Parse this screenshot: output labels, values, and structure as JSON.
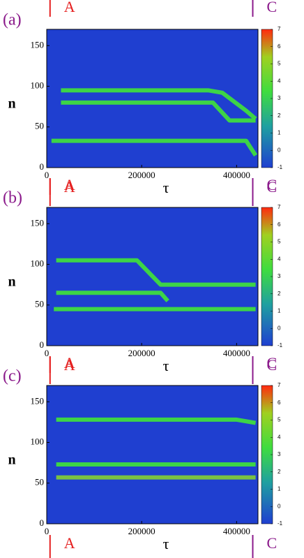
{
  "chart_data": [
    {
      "type": "line",
      "label": "(a)",
      "xlabel": "τ",
      "ylabel": "n",
      "xlim": [
        0,
        445000
      ],
      "ylim": [
        0,
        170
      ],
      "xticks": [
        0,
        200000,
        400000
      ],
      "yticks": [
        0,
        50,
        100,
        150
      ],
      "background": "#1f3fd0",
      "colorbar": {
        "lim": [
          -1,
          7
        ],
        "ticks": [
          -1,
          0,
          1,
          2,
          3,
          4,
          5,
          6,
          7
        ]
      },
      "markers": [
        {
          "label": "A",
          "x": 7000,
          "color": "#e52020"
        },
        {
          "label": "C",
          "x": 434000,
          "color": "#8b1a8b"
        }
      ],
      "series": [
        {
          "color": "#3fdc3f",
          "x": [
            30000,
            340000,
            370000,
            420000,
            440000
          ],
          "values": [
            95,
            95,
            92,
            70,
            60
          ]
        },
        {
          "color": "#3fdc3f",
          "x": [
            30000,
            350000,
            385000,
            440000
          ],
          "values": [
            80,
            80,
            58,
            58
          ]
        },
        {
          "color": "#3fdc3f",
          "x": [
            10000,
            420000,
            440000
          ],
          "values": [
            33,
            33,
            15
          ]
        }
      ]
    },
    {
      "type": "line",
      "label": "(b)",
      "xlabel": "τ",
      "ylabel": "n",
      "xlim": [
        0,
        445000
      ],
      "ylim": [
        0,
        170
      ],
      "xticks": [
        0,
        200000,
        400000
      ],
      "yticks": [
        0,
        50,
        100,
        150
      ],
      "background": "#1f3fd0",
      "colorbar": {
        "lim": [
          -1,
          7
        ],
        "ticks": [
          -1,
          0,
          1,
          2,
          3,
          4,
          5,
          6,
          7
        ]
      },
      "markers": [
        {
          "label": "A",
          "x": 7000,
          "color": "#e52020"
        },
        {
          "label": "C",
          "x": 434000,
          "color": "#8b1a8b"
        }
      ],
      "series": [
        {
          "color": "#3fdc3f",
          "x": [
            20000,
            190000,
            240000,
            440000
          ],
          "values": [
            105,
            105,
            75,
            75
          ]
        },
        {
          "color": "#3fdc3f",
          "x": [
            20000,
            240000,
            255000
          ],
          "values": [
            65,
            65,
            55
          ]
        },
        {
          "color": "#3fdc3f",
          "x": [
            15000,
            440000
          ],
          "values": [
            45,
            45
          ]
        }
      ]
    },
    {
      "type": "line",
      "label": "(c)",
      "xlabel": "τ",
      "ylabel": "n",
      "xlim": [
        0,
        445000
      ],
      "ylim": [
        0,
        170
      ],
      "xticks": [
        0,
        200000,
        400000
      ],
      "yticks": [
        0,
        50,
        100,
        150
      ],
      "background": "#1f3fd0",
      "colorbar": {
        "lim": [
          -1,
          7
        ],
        "ticks": [
          -1,
          0,
          1,
          2,
          3,
          4,
          5,
          6,
          7
        ]
      },
      "markers": [
        {
          "label": "A",
          "x": 7000,
          "color": "#e52020"
        },
        {
          "label": "C",
          "x": 434000,
          "color": "#8b1a8b"
        }
      ],
      "series": [
        {
          "color": "#3fdc3f",
          "x": [
            20000,
            400000,
            440000
          ],
          "values": [
            128,
            128,
            124
          ]
        },
        {
          "color": "#3fdc3f",
          "x": [
            20000,
            440000
          ],
          "values": [
            73,
            73
          ]
        },
        {
          "color": "#7fc83a",
          "x": [
            20000,
            440000
          ],
          "values": [
            57,
            57
          ]
        }
      ]
    }
  ]
}
